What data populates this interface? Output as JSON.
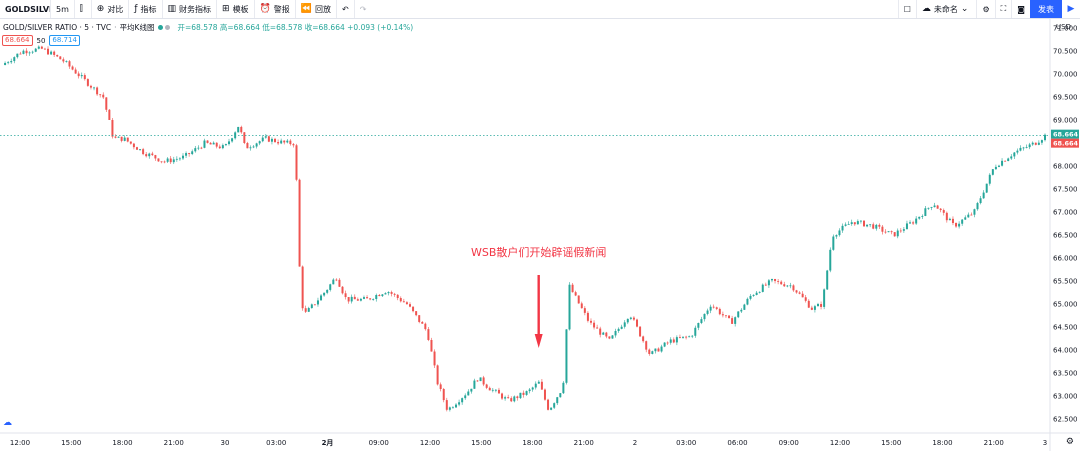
{
  "toolbar": {
    "symbol": "GOLDSILVER",
    "interval": "5m",
    "compare": "对比",
    "indicators": "指标",
    "financials": "财务指标",
    "templates": "模板",
    "alert": "警报",
    "replay": "回放",
    "unnamed": "未命名",
    "publish": "发表"
  },
  "legend": {
    "name": "GOLD/SILVER RATIO · 5 · TVC",
    "chart_style": "平均K线图",
    "ohlc": "开=68.578 高=68.664 低=68.578 收=68.664 +0.093 (+0.14%)",
    "price_badge": "68.664",
    "mid_value": "50",
    "ask_badge": "68.714"
  },
  "colors": {
    "up": "#26a69a",
    "down": "#ef5350",
    "annotation": "#f23645"
  },
  "chart_data": {
    "type": "candlestick",
    "title": "GOLD/SILVER RATIO · 5 · TVC",
    "y_axis_unit": "USD",
    "y_ticks": [
      "71.000",
      "70.500",
      "70.000",
      "69.500",
      "69.000",
      "68.500",
      "68.000",
      "67.500",
      "67.000",
      "66.500",
      "66.000",
      "65.500",
      "65.000",
      "64.500",
      "64.000",
      "63.500",
      "63.000",
      "62.500"
    ],
    "ylim": [
      62.2,
      71.2
    ],
    "x_ticks": [
      "12:00",
      "15:00",
      "18:00",
      "21:00",
      "30",
      "03:00",
      "2月",
      "09:00",
      "12:00",
      "15:00",
      "18:00",
      "21:00",
      "2",
      "03:00",
      "06:00",
      "09:00",
      "12:00",
      "15:00",
      "18:00",
      "21:00",
      "3"
    ],
    "current_price_tags": [
      "68.664",
      "68.664"
    ],
    "series": [
      {
        "x": 0,
        "y": 70.2
      },
      {
        "x": 1,
        "y": 70.5
      },
      {
        "x": 2,
        "y": 70.55
      },
      {
        "x": 3,
        "y": 70.3
      },
      {
        "x": 4,
        "y": 69.9
      },
      {
        "x": 5,
        "y": 69.5
      },
      {
        "x": 5.5,
        "y": 68.6
      },
      {
        "x": 6,
        "y": 68.6
      },
      {
        "x": 7,
        "y": 68.3
      },
      {
        "x": 8,
        "y": 68.1
      },
      {
        "x": 9,
        "y": 68.2
      },
      {
        "x": 10,
        "y": 68.5
      },
      {
        "x": 11,
        "y": 68.4
      },
      {
        "x": 11.7,
        "y": 68.9
      },
      {
        "x": 12,
        "y": 68.4
      },
      {
        "x": 13,
        "y": 68.6
      },
      {
        "x": 14,
        "y": 68.5
      },
      {
        "x": 14.5,
        "y": 68.5
      },
      {
        "x": 14.6,
        "y": 66.5
      },
      {
        "x": 14.8,
        "y": 65.0
      },
      {
        "x": 15,
        "y": 64.8
      },
      {
        "x": 16,
        "y": 65.3
      },
      {
        "x": 16.5,
        "y": 65.6
      },
      {
        "x": 17,
        "y": 65.1
      },
      {
        "x": 18,
        "y": 65.1
      },
      {
        "x": 19,
        "y": 65.3
      },
      {
        "x": 20,
        "y": 65.0
      },
      {
        "x": 21,
        "y": 64.4
      },
      {
        "x": 21.5,
        "y": 63.3
      },
      {
        "x": 22,
        "y": 62.7
      },
      {
        "x": 23,
        "y": 63.1
      },
      {
        "x": 23.5,
        "y": 63.4
      },
      {
        "x": 24,
        "y": 63.2
      },
      {
        "x": 25,
        "y": 62.9
      },
      {
        "x": 26,
        "y": 63.1
      },
      {
        "x": 26.5,
        "y": 63.3
      },
      {
        "x": 27,
        "y": 62.7
      },
      {
        "x": 27.7,
        "y": 63.2
      },
      {
        "x": 28,
        "y": 65.4
      },
      {
        "x": 29,
        "y": 64.6
      },
      {
        "x": 30,
        "y": 64.2
      },
      {
        "x": 31,
        "y": 64.8
      },
      {
        "x": 32,
        "y": 63.9
      },
      {
        "x": 33,
        "y": 64.2
      },
      {
        "x": 34,
        "y": 64.3
      },
      {
        "x": 35,
        "y": 65.0
      },
      {
        "x": 36,
        "y": 64.6
      },
      {
        "x": 37,
        "y": 65.2
      },
      {
        "x": 38,
        "y": 65.5
      },
      {
        "x": 39,
        "y": 65.4
      },
      {
        "x": 40,
        "y": 64.9
      },
      {
        "x": 40.5,
        "y": 65.0
      },
      {
        "x": 41,
        "y": 66.5
      },
      {
        "x": 42,
        "y": 66.8
      },
      {
        "x": 43,
        "y": 66.7
      },
      {
        "x": 44,
        "y": 66.5
      },
      {
        "x": 45,
        "y": 66.8
      },
      {
        "x": 46,
        "y": 67.2
      },
      {
        "x": 47,
        "y": 66.7
      },
      {
        "x": 48,
        "y": 67.0
      },
      {
        "x": 49,
        "y": 68.0
      },
      {
        "x": 50,
        "y": 68.3
      },
      {
        "x": 51,
        "y": 68.5
      },
      {
        "x": 51.5,
        "y": 68.664
      }
    ],
    "annotations": [
      {
        "text": "WSB散户们开始辟谣假新闻",
        "arrow_at_x": 26.5
      }
    ]
  }
}
